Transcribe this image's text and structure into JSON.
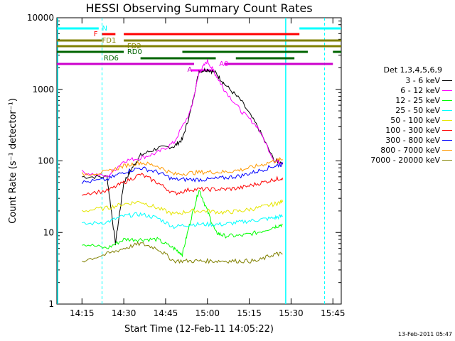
{
  "chart_data": {
    "type": "line",
    "title": "HESSI Observing Summary Count Rates",
    "xlabel": "Start Time (12-Feb-11 14:05:22)",
    "ylabel": "Count Rate (s⁻¹ detector⁻¹)",
    "xlim": [
      14.1,
      15.8
    ],
    "ylim": [
      1,
      10000
    ],
    "yscale": "log",
    "x_ticks": [
      "14:15",
      "14:30",
      "14:45",
      "15:00",
      "15:15",
      "15:30",
      "15:45"
    ],
    "y_ticks": [
      "1",
      "10",
      "100",
      "1000",
      "10000"
    ],
    "legend_title": "Det 1,3,4,5,6,9",
    "legend_placement": "right",
    "footer_stamp": "13-Feb-2011 05:47",
    "flag_labels": [
      "N",
      "F",
      "FD1",
      "FD2",
      "RD0",
      "RD6",
      "A",
      "A0"
    ],
    "series": [
      {
        "name": "3 - 6 keV",
        "color": "#000000",
        "x": [
          14.25,
          14.4,
          14.45,
          14.5,
          14.55,
          14.6,
          14.7,
          14.8,
          14.85,
          14.9,
          14.95,
          15.0,
          15.05,
          15.1,
          15.2,
          15.3,
          15.4,
          15.45
        ],
        "y": [
          60,
          60,
          7,
          50,
          80,
          120,
          150,
          160,
          200,
          500,
          1800,
          1900,
          1700,
          1200,
          700,
          300,
          100,
          95
        ]
      },
      {
        "name": "6 - 12 keV",
        "color": "#ff00ff",
        "x": [
          14.25,
          14.4,
          14.5,
          14.6,
          14.7,
          14.8,
          14.9,
          14.95,
          15.0,
          15.05,
          15.1,
          15.2,
          15.3,
          15.4,
          15.45
        ],
        "y": [
          70,
          60,
          100,
          110,
          130,
          180,
          500,
          1700,
          2500,
          1600,
          1000,
          500,
          300,
          100,
          95
        ]
      },
      {
        "name": "12 - 25 keV",
        "color": "#00ff00",
        "x": [
          14.25,
          14.4,
          14.5,
          14.6,
          14.7,
          14.8,
          14.85,
          14.9,
          14.95,
          15.0,
          15.05,
          15.1,
          15.2,
          15.3,
          15.4,
          15.45
        ],
        "y": [
          7,
          6,
          8,
          8,
          8,
          6,
          5,
          15,
          40,
          20,
          10,
          9,
          9,
          10,
          12,
          13
        ]
      },
      {
        "name": "25 - 50 keV",
        "color": "#00ffff",
        "x": [
          14.25,
          14.4,
          14.5,
          14.6,
          14.7,
          14.8,
          14.9,
          15.0,
          15.1,
          15.2,
          15.3,
          15.4,
          15.45
        ],
        "y": [
          13,
          14,
          17,
          18,
          16,
          12,
          13,
          13,
          13,
          14,
          15,
          16,
          17
        ]
      },
      {
        "name": "50 - 100 keV",
        "color": "#e6e600",
        "x": [
          14.25,
          14.4,
          14.5,
          14.6,
          14.7,
          14.8,
          14.9,
          15.0,
          15.1,
          15.2,
          15.3,
          15.4,
          15.45
        ],
        "y": [
          20,
          22,
          25,
          27,
          22,
          18,
          20,
          20,
          19,
          20,
          22,
          25,
          27
        ]
      },
      {
        "name": "100 - 300 keV",
        "color": "#ff0000",
        "x": [
          14.25,
          14.4,
          14.5,
          14.6,
          14.7,
          14.8,
          14.9,
          15.0,
          15.1,
          15.2,
          15.3,
          15.4,
          15.45
        ],
        "y": [
          35,
          38,
          50,
          65,
          50,
          35,
          40,
          40,
          40,
          42,
          48,
          55,
          58
        ]
      },
      {
        "name": "300 - 800 keV",
        "color": "#0000ff",
        "x": [
          14.25,
          14.4,
          14.5,
          14.6,
          14.7,
          14.8,
          14.9,
          15.0,
          15.1,
          15.2,
          15.3,
          15.4,
          15.45
        ],
        "y": [
          50,
          55,
          70,
          80,
          70,
          55,
          55,
          55,
          58,
          62,
          72,
          85,
          90
        ]
      },
      {
        "name": "800 - 7000 keV",
        "color": "#ff9900",
        "x": [
          14.25,
          14.4,
          14.5,
          14.6,
          14.7,
          14.8,
          14.9,
          15.0,
          15.1,
          15.2,
          15.3,
          15.4,
          15.45
        ],
        "y": [
          65,
          70,
          85,
          95,
          85,
          65,
          68,
          70,
          70,
          75,
          85,
          100,
          105
        ]
      },
      {
        "name": "7000 - 20000 keV",
        "color": "#808000",
        "x": [
          14.25,
          14.4,
          14.5,
          14.6,
          14.7,
          14.8,
          14.9,
          15.0,
          15.1,
          15.2,
          15.3,
          15.4,
          15.45
        ],
        "y": [
          4,
          5,
          6,
          7,
          6,
          4,
          4,
          4,
          4,
          4,
          4,
          5,
          5
        ]
      }
    ]
  }
}
